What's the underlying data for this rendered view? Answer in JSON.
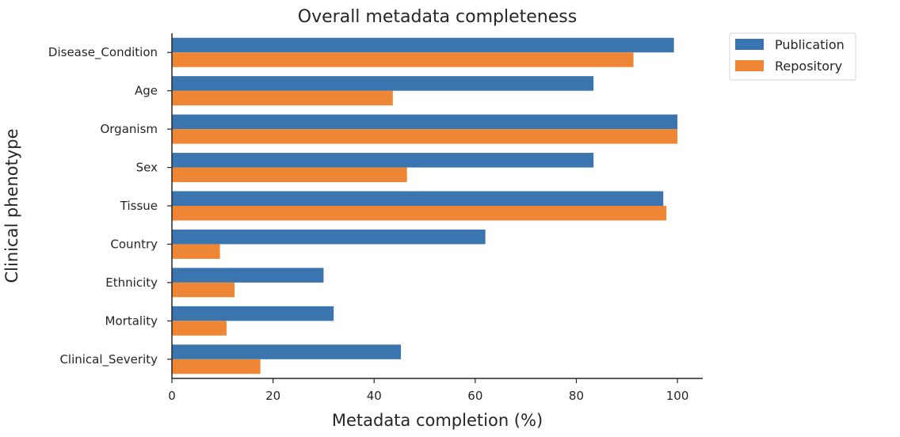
{
  "colors": {
    "publication": "#3b75af",
    "repository": "#ef8636"
  },
  "chart_data": {
    "type": "bar",
    "orientation": "horizontal",
    "title": "Overall metadata completeness",
    "xlabel": "Metadata completion (%)",
    "ylabel": "Clinical phenotype",
    "xlim": [
      0,
      105
    ],
    "xticks": [
      "0",
      "20",
      "40",
      "60",
      "80",
      "100"
    ],
    "grid": false,
    "legend_position": "outside top-right",
    "categories": [
      "Disease_Condition",
      "Age",
      "Organism",
      "Sex",
      "Tissue",
      "Country",
      "Ethnicity",
      "Mortality",
      "Clinical_Severity"
    ],
    "series": [
      {
        "name": "Publication",
        "values": [
          99.3,
          83.4,
          100,
          83.4,
          97.2,
          62.0,
          30.0,
          32.0,
          45.3
        ]
      },
      {
        "name": "Repository",
        "values": [
          91.3,
          43.7,
          100,
          46.5,
          97.8,
          9.5,
          12.4,
          10.8,
          17.5
        ]
      }
    ]
  }
}
